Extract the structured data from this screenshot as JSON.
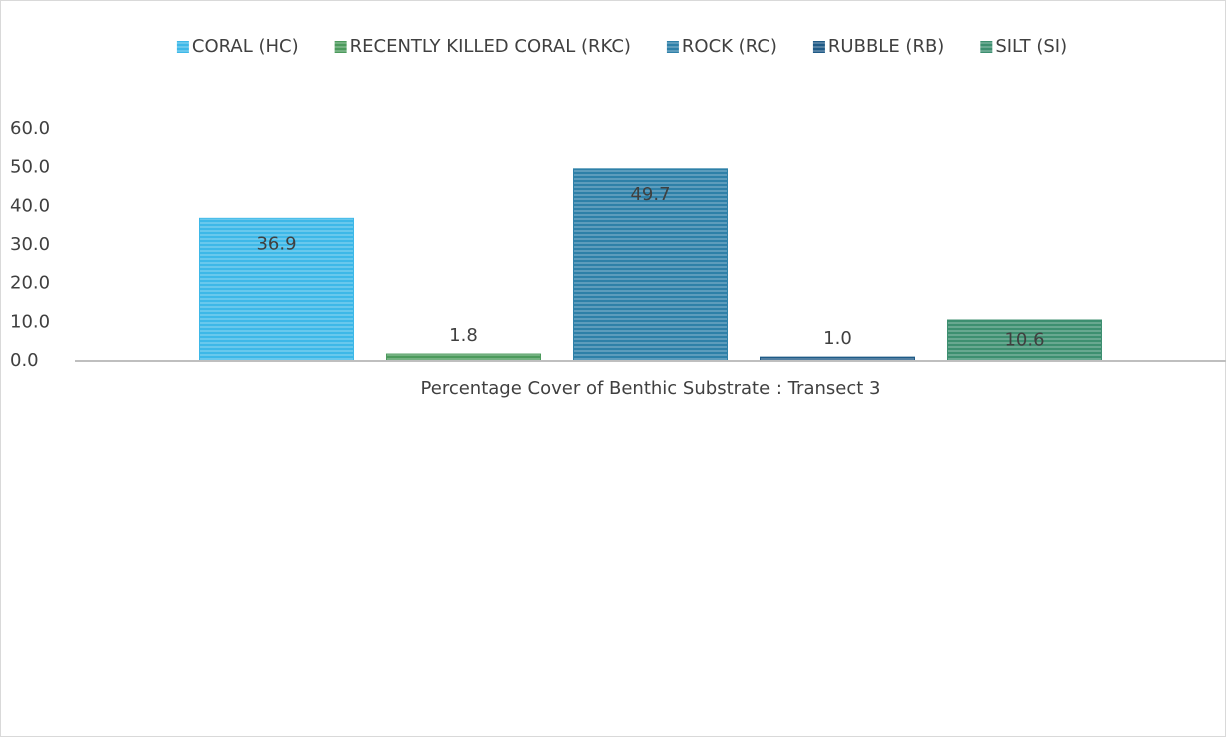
{
  "chart_data": {
    "type": "bar",
    "categories": [
      "Percentage Cover of Benthic Substrate : Transect 3"
    ],
    "series": [
      {
        "name": "CORAL (HC)",
        "color": "#3db8e8",
        "values": [
          36.9
        ],
        "value_labels": [
          "36.9"
        ]
      },
      {
        "name": "RECENTLY KILLED CORAL (RKC)",
        "color": "#4c9a5c",
        "values": [
          1.8
        ],
        "value_labels": [
          "1.8"
        ]
      },
      {
        "name": "ROCK (RC)",
        "color": "#2e80a8",
        "values": [
          49.7
        ],
        "value_labels": [
          "49.7"
        ]
      },
      {
        "name": "RUBBLE (RB)",
        "color": "#1f5a86",
        "values": [
          1.0
        ],
        "value_labels": [
          "1.0"
        ]
      },
      {
        "name": "SILT (SI)",
        "color": "#3d8f70",
        "values": [
          10.6
        ],
        "value_labels": [
          "10.6"
        ]
      }
    ],
    "ylim": [
      0,
      60
    ],
    "yticks": [
      {
        "value": 0,
        "label": "0.0"
      },
      {
        "value": 10,
        "label": "10.0"
      },
      {
        "value": 20,
        "label": "20.0"
      },
      {
        "value": 30,
        "label": "30.0"
      },
      {
        "value": 40,
        "label": "40.0"
      },
      {
        "value": 50,
        "label": "50.0"
      },
      {
        "value": 60,
        "label": "60.0"
      }
    ],
    "legend": "top",
    "grid": false
  }
}
